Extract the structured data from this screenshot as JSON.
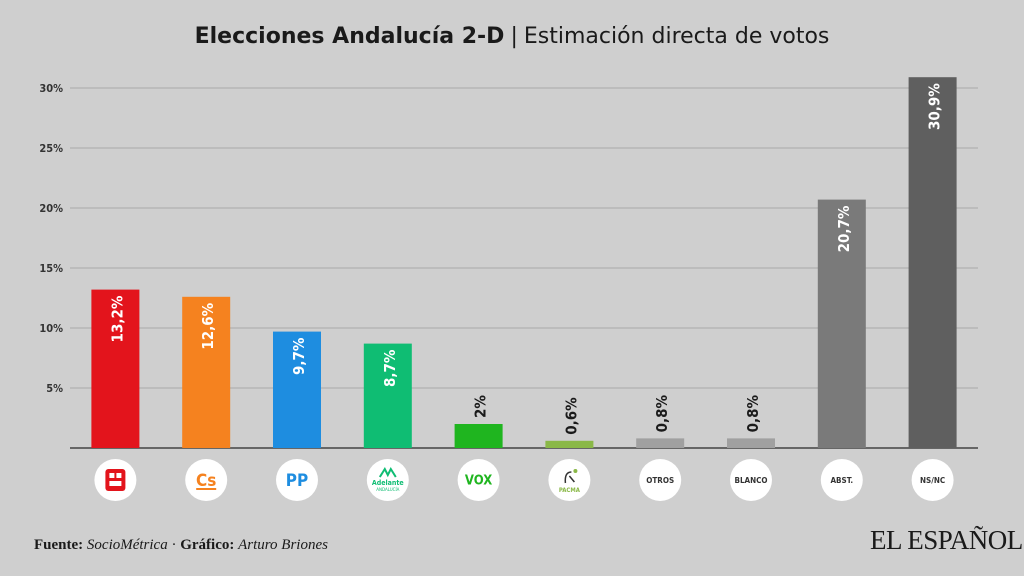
{
  "title": {
    "main": "Elecciones Andalucía 2-D",
    "separator": "|",
    "sub": "Estimación directa de votos"
  },
  "footer": {
    "source_label": "Fuente:",
    "source": "SocioMétrica",
    "dot": "·",
    "graphic_label": "Gráfico:",
    "graphic": "Arturo Briones"
  },
  "brand": "EL ESPAÑOL",
  "chart_data": {
    "type": "bar",
    "categories": [
      "PSOE",
      "Cs",
      "PP",
      "Adelante Andalucía",
      "VOX",
      "PACMA",
      "OTROS",
      "BLANCO",
      "ABST.",
      "NS/NC"
    ],
    "values": [
      13.2,
      12.6,
      9.7,
      8.7,
      2,
      0.6,
      0.8,
      0.8,
      20.7,
      30.9
    ],
    "value_labels": [
      "13,2%",
      "12,6%",
      "9,7%",
      "8,7%",
      "2%",
      "0,6%",
      "0,8%",
      "0,8%",
      "20,7%",
      "30,9%"
    ],
    "colors": [
      "#e3141c",
      "#f5821f",
      "#1e8de0",
      "#0fbd73",
      "#1fb51f",
      "#8ab847",
      "#a0a0a0",
      "#a0a0a0",
      "#7a7a7a",
      "#5f5f5f"
    ],
    "logo_texts": [
      "",
      "Cs",
      "PP",
      "Adelante",
      "VOX",
      "PACMA",
      "OTROS",
      "BLANCO",
      "ABST.",
      "NS/NC"
    ],
    "logo_sub": [
      "",
      "",
      "",
      "ANDALUCÍA",
      "",
      "",
      "",
      "",
      "",
      ""
    ],
    "logo_colors": [
      "#e3141c",
      "#f5821f",
      "#1e8de0",
      "#0fbd73",
      "#1fb51f",
      "#8ab847",
      "#333333",
      "#333333",
      "#333333",
      "#333333"
    ],
    "y_ticks": [
      5,
      10,
      15,
      20,
      25,
      30
    ],
    "y_tick_labels": [
      "5%",
      "10%",
      "15%",
      "20%",
      "25%",
      "30%"
    ],
    "ylim": [
      0,
      30
    ],
    "grid": true,
    "xlabel": "",
    "ylabel": ""
  }
}
